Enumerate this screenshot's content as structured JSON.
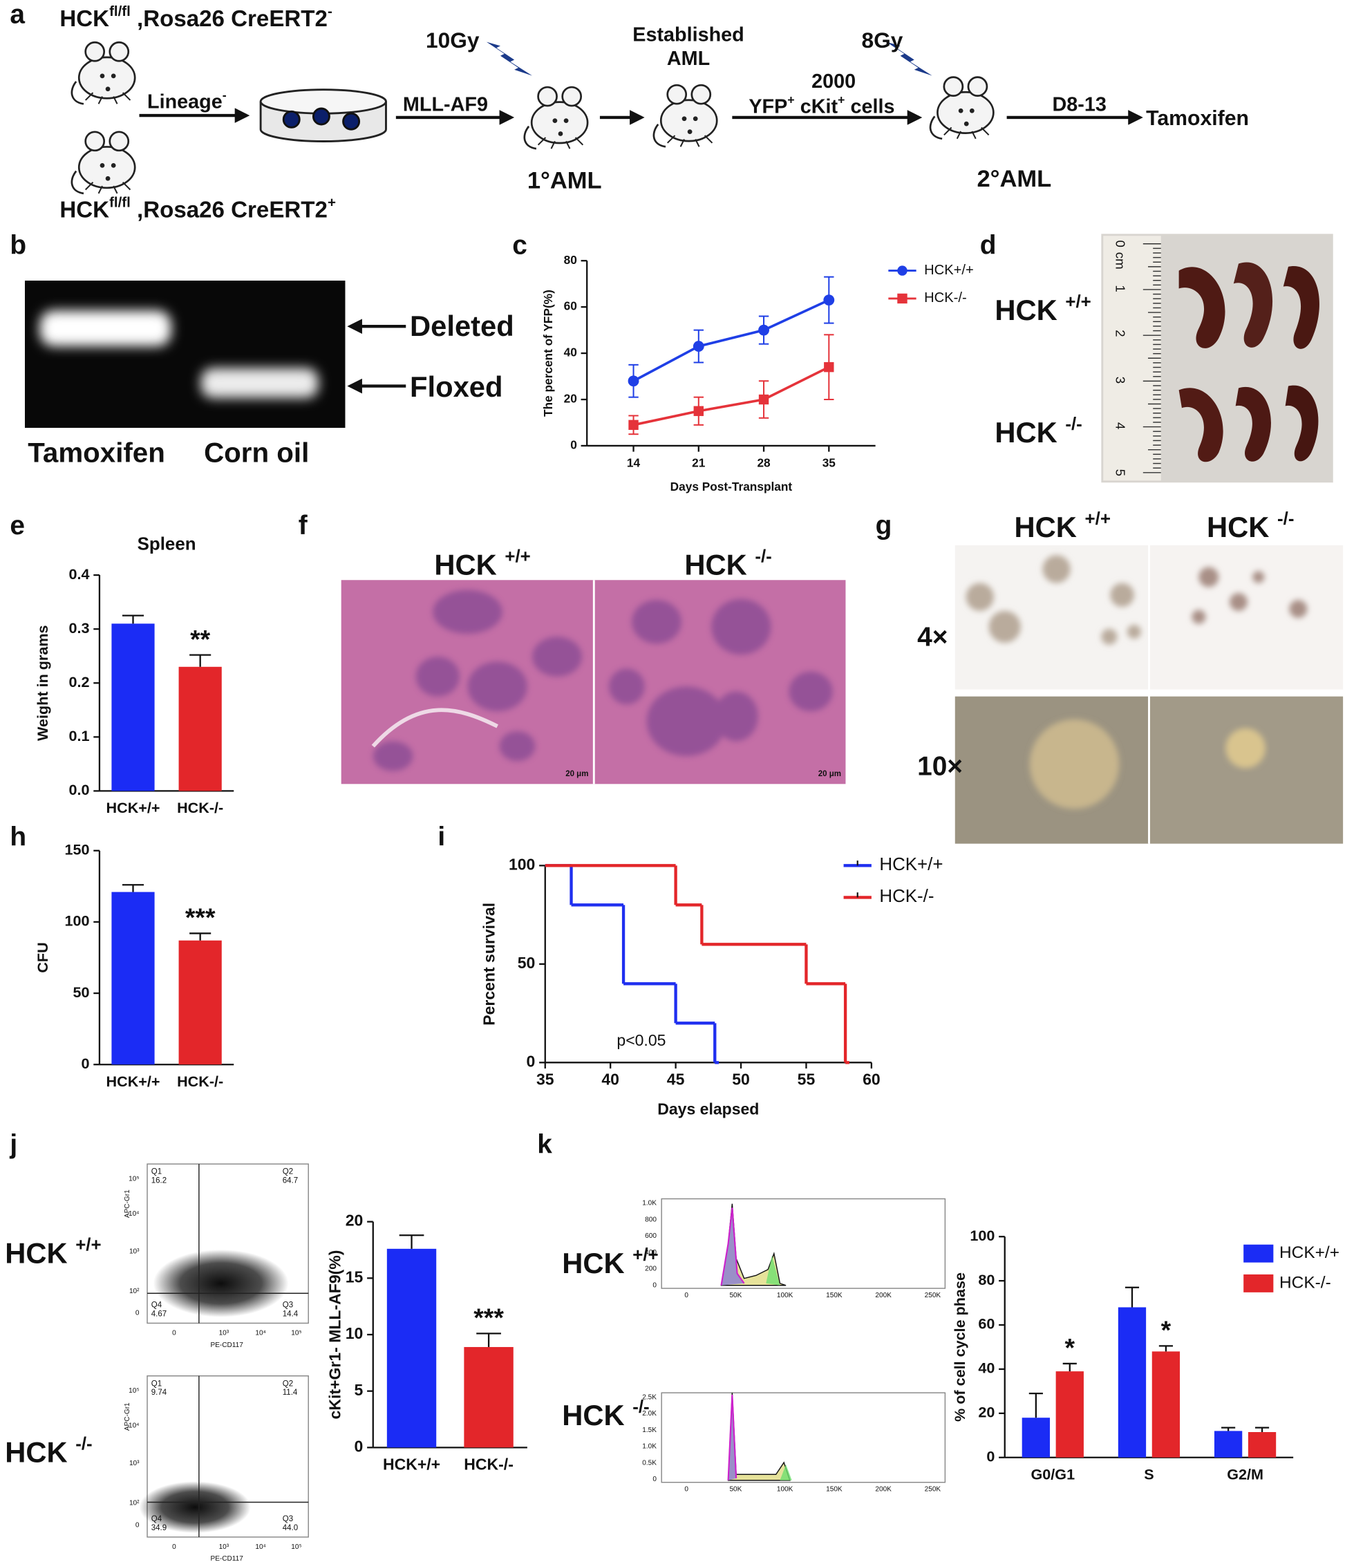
{
  "panel_labels": [
    "a",
    "b",
    "c",
    "d",
    "e",
    "f",
    "g",
    "h",
    "i",
    "j",
    "k"
  ],
  "schematic": {
    "genotype_top": [
      "HCK",
      "fl/fl",
      " ,Rosa26 CreERT2",
      "-"
    ],
    "genotype_bottom": [
      "HCK",
      "fl/fl",
      " ,Rosa26 CreERT2",
      "+"
    ],
    "step1": [
      "Lineage",
      "-"
    ],
    "step2": "MLL-AF9",
    "irradiation1": "10Gy",
    "primary": "1°AML",
    "established": [
      "Established",
      "AML"
    ],
    "cells_count": "2000",
    "cells": [
      "YFP",
      "+",
      " cKit",
      "+",
      " cells"
    ],
    "irradiation2": "8Gy",
    "secondary": "2°AML",
    "days": "D8-13",
    "treatment": "Tamoxifen"
  },
  "gel": {
    "bands": [
      "Deleted",
      "Floxed"
    ],
    "lanes": [
      "Tamoxifen",
      "Corn oil"
    ]
  },
  "spleen_photo": {
    "ruler": [
      "0",
      "cm",
      "1",
      "2",
      "3",
      "4",
      "5"
    ],
    "groups": [
      [
        "HCK ",
        "+/+"
      ],
      [
        "HCK ",
        "-/-"
      ]
    ]
  },
  "histology": {
    "groups": [
      [
        "HCK ",
        "+/+"
      ],
      [
        "HCK ",
        "-/-"
      ]
    ],
    "scale_bars": [
      "20 μm",
      "20 μm"
    ]
  },
  "colonies": {
    "groups": [
      [
        "HCK ",
        "+/+"
      ],
      [
        "HCK ",
        "-/-"
      ]
    ],
    "magnifications": [
      "4×",
      "10×"
    ]
  },
  "flow": {
    "groups": [
      [
        "HCK ",
        "+/+"
      ],
      [
        "HCK ",
        "-/-"
      ]
    ],
    "y_axis": "APC-Gr1",
    "x_axis": "PE-CD117",
    "y_ticks": [
      "10⁵",
      "10⁴",
      "10³",
      "10²",
      "0"
    ],
    "x_ticks": [
      "0",
      "10³",
      "10⁴",
      "10⁵"
    ],
    "plots": [
      {
        "quadrants": [
          [
            "Q1",
            "16.2"
          ],
          [
            "Q2",
            "64.7"
          ],
          [
            "Q4",
            "4.67"
          ],
          [
            "Q3",
            "14.4"
          ]
        ]
      },
      {
        "quadrants": [
          [
            "Q1",
            "9.74"
          ],
          [
            "Q2",
            "11.4"
          ],
          [
            "Q4",
            "34.9"
          ],
          [
            "Q3",
            "44.0"
          ]
        ]
      }
    ]
  },
  "cell_cycle_histograms": {
    "groups": [
      [
        "HCK ",
        "+/+"
      ],
      [
        "HCK ",
        "-/-"
      ]
    ],
    "x_ticks": [
      "0",
      "50K",
      "100K",
      "150K",
      "200K",
      "250K"
    ],
    "y_ticks_top": [
      "0",
      "200",
      "400",
      "600",
      "800",
      "1.0K"
    ],
    "y_ticks_bottom": [
      "0",
      "0.5K",
      "1.0K",
      "1.5K",
      "2.0K",
      "2.5K"
    ]
  },
  "chart_data": [
    {
      "type": "line",
      "xlabel": "Days Post-Transplant",
      "ylabel": "The percent of YFP(%)",
      "x": [
        14,
        21,
        28,
        35
      ],
      "xlim": [
        9,
        40
      ],
      "xticks": [
        14,
        21,
        28,
        35
      ],
      "ylim": [
        0,
        80
      ],
      "yticks": [
        0,
        20,
        40,
        60,
        80
      ],
      "legend": "upper right",
      "series": [
        {
          "name": "HCK+/+",
          "color": "#1f3fe6",
          "marker": "circle",
          "values": [
            28,
            43,
            50,
            63
          ],
          "errors": [
            7,
            7,
            6,
            10
          ]
        },
        {
          "name": "HCK-/-",
          "color": "#e5333a",
          "marker": "square",
          "values": [
            9,
            15,
            20,
            34
          ],
          "errors": [
            4,
            6,
            8,
            14
          ]
        }
      ]
    },
    {
      "type": "bar",
      "title": "Spleen",
      "ylabel": "Weight  in grams",
      "categories": [
        "HCK+/+",
        "HCK-/-"
      ],
      "values": [
        0.31,
        0.23
      ],
      "errors": [
        0.015,
        0.022
      ],
      "colors": [
        "#1b2cf5",
        "#e3262a"
      ],
      "ylim": [
        0,
        0.4
      ],
      "yticks": [
        {
          "value": 0,
          "label": "0.0"
        },
        0.1,
        0.2,
        0.3,
        0.4
      ],
      "annotations": [
        {
          "text": "**",
          "category": "HCK-/-"
        }
      ]
    },
    {
      "type": "bar",
      "ylabel": "CFU",
      "categories": [
        "HCK+/+",
        "HCK-/-"
      ],
      "values": [
        121,
        87
      ],
      "errors": [
        5,
        5
      ],
      "colors": [
        "#1b2cf5",
        "#e3262a"
      ],
      "ylim": [
        0,
        150
      ],
      "yticks": [
        0,
        50,
        100,
        150
      ],
      "annotations": [
        {
          "text": "***",
          "category": "HCK-/-"
        }
      ]
    },
    {
      "type": "line",
      "step": true,
      "xlabel": "Days elapsed",
      "ylabel": "Percent survival",
      "xlim": [
        35,
        60
      ],
      "xticks": [
        35,
        40,
        45,
        50,
        55,
        60
      ],
      "ylim": [
        0,
        100
      ],
      "yticks": [
        0,
        50,
        100
      ],
      "legend": "upper right",
      "annotations": [
        {
          "text": "p<0.05"
        }
      ],
      "series": [
        {
          "name": "HCK+/+",
          "color": "#1f2ff0",
          "x": [
            35,
            37,
            41,
            45,
            48
          ],
          "values": [
            100,
            80,
            40,
            20,
            0
          ]
        },
        {
          "name": "HCK-/-",
          "color": "#e3262a",
          "x": [
            35,
            45,
            47,
            55,
            58
          ],
          "values": [
            100,
            80,
            60,
            40,
            0
          ]
        }
      ]
    },
    {
      "type": "bar",
      "ylabel": "cKit+Gr1- MLL-AF9(%)",
      "categories": [
        "HCK+/+",
        "HCK-/-"
      ],
      "values": [
        17.6,
        8.9
      ],
      "errors": [
        1.2,
        1.2
      ],
      "colors": [
        "#1b2cf5",
        "#e3262a"
      ],
      "ylim": [
        0,
        20
      ],
      "yticks": [
        0,
        5,
        10,
        15,
        20
      ],
      "annotations": [
        {
          "text": "***",
          "category": "HCK-/-"
        }
      ]
    },
    {
      "type": "bar",
      "ylabel": "% of  cell cycle phase",
      "categories": [
        "G0/G1",
        "S",
        "G2/M"
      ],
      "ylim": [
        0,
        100
      ],
      "yticks": [
        0,
        20,
        40,
        60,
        80,
        100
      ],
      "legend": "upper right",
      "series": [
        {
          "name": "HCK+/+",
          "color": "#1b2cf5",
          "values": [
            18,
            68,
            12
          ],
          "errors": [
            11,
            9,
            1.5
          ]
        },
        {
          "name": "HCK-/-",
          "color": "#e3262a",
          "values": [
            39,
            48,
            11.5
          ],
          "errors": [
            3.5,
            2.5,
            2
          ]
        }
      ],
      "annotations": [
        {
          "text": "*",
          "category": "G0/G1",
          "series": "HCK-/-"
        },
        {
          "text": "*",
          "category": "S",
          "series": "HCK-/-"
        }
      ]
    }
  ]
}
